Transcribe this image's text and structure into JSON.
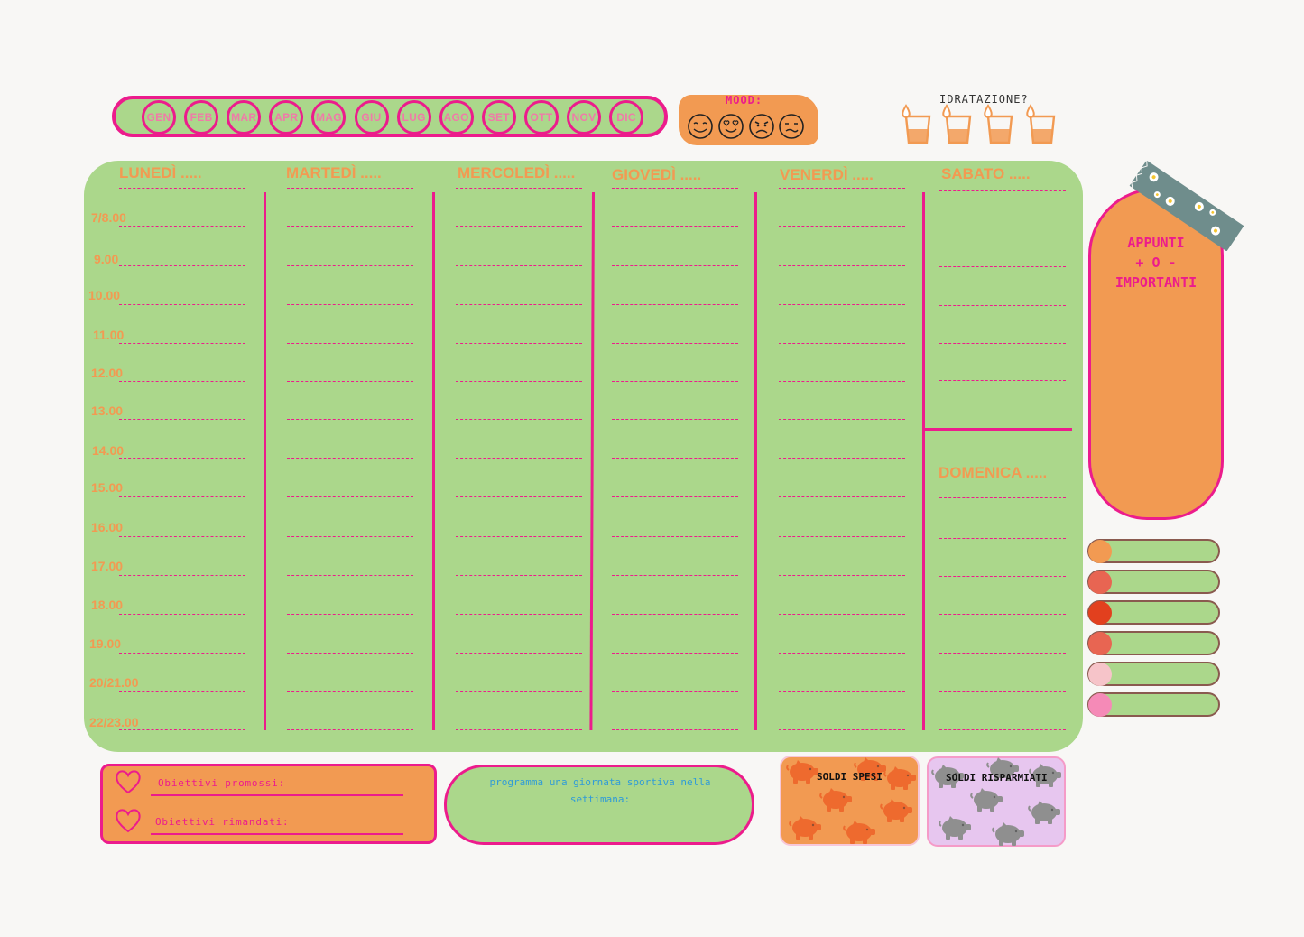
{
  "months": [
    "GEN",
    "FEB",
    "MAR",
    "APR",
    "MAG",
    "GIU",
    "LUG",
    "AGO",
    "SET",
    "OTT",
    "NOV",
    "DIC"
  ],
  "mood": {
    "label": "MOOD:",
    "faces": [
      "smile-face-icon",
      "heart-eyes-face-icon",
      "angry-face-icon",
      "sick-face-icon"
    ]
  },
  "hydration": {
    "label": "IDRATAZIONE?",
    "glasses": 4
  },
  "days": {
    "mon": "LUNEDÌ .....",
    "tue": "MARTEDÌ .....",
    "wed": "MERCOLEDÌ .....",
    "thu": "GIOVEDÌ .....",
    "fri": "VENERDÌ .....",
    "sat": "SABATO .....",
    "sun": "DOMENICA ....."
  },
  "times": [
    "7/8.00",
    "9.00",
    "10.00",
    "11.00",
    "12.00",
    "13.00",
    "14.00",
    "15.00",
    "16.00",
    "17.00",
    "18.00",
    "19.00",
    "20/21.00",
    "22/23.00"
  ],
  "notes": {
    "title": "APPUNTI\n+ O -\nIMPORTANTI"
  },
  "legend_colors": [
    "#f29a52",
    "#e86552",
    "#e2401e",
    "#e86552",
    "#f6c4c9",
    "#f58ab7"
  ],
  "goals": {
    "promoted": "Obiettivi promossi:",
    "postponed": "Obiettivi rimandati:"
  },
  "sport": {
    "text": "programma una giornata sportiva nella settimana:"
  },
  "money": {
    "spent": "SOLDI SPESI",
    "saved": "SOLDI RISPARMIATI"
  },
  "colors": {
    "green": "#abd78b",
    "pink": "#ec1c8c",
    "orange": "#f29a52",
    "lilac": "#e7c6ef"
  }
}
